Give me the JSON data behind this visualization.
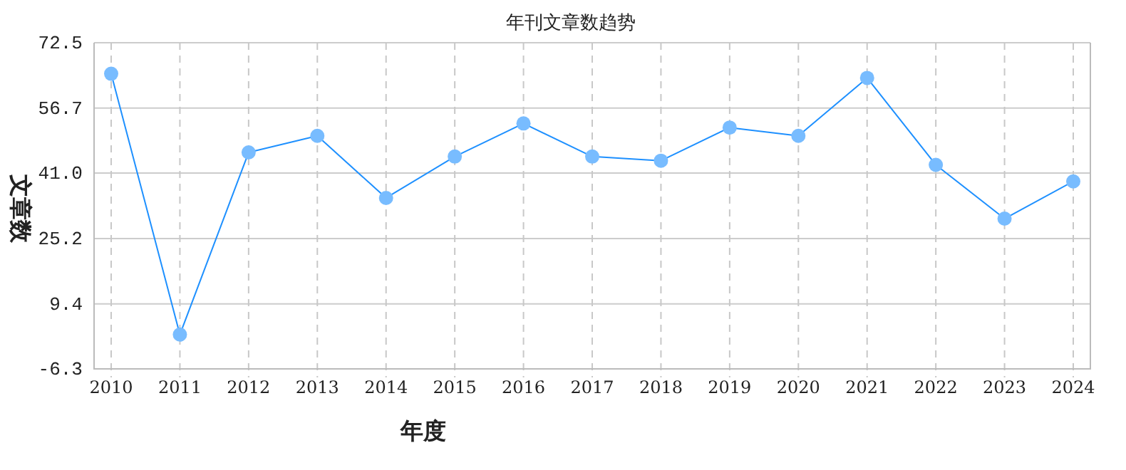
{
  "chart_data": {
    "type": "line",
    "title": "年刊文章数趋势",
    "xlabel": "年度",
    "ylabel": "文章数",
    "categories": [
      "2010",
      "2011",
      "2012",
      "2013",
      "2014",
      "2015",
      "2016",
      "2017",
      "2018",
      "2019",
      "2020",
      "2021",
      "2022",
      "2023",
      "2024"
    ],
    "values": [
      65,
      2,
      46,
      50,
      35,
      45,
      53,
      45,
      44,
      52,
      50,
      64,
      43,
      30,
      39
    ],
    "color": "#1e90ff",
    "ylim": [
      -6.3,
      72.5
    ],
    "yticks": [
      -6.3,
      9.4,
      25.2,
      {
        "value": 41,
        "label": "41.0"
      },
      56.7,
      72.5
    ],
    "grid": true,
    "marker": "circle"
  }
}
